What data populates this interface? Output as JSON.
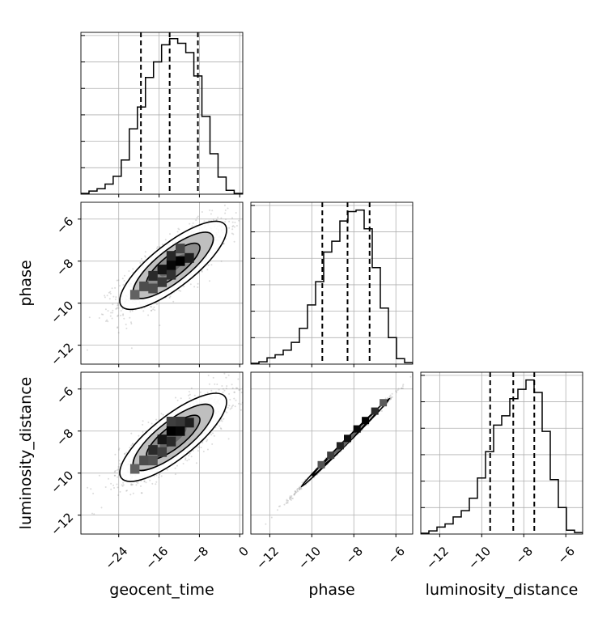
{
  "chart_data": {
    "type": "corner",
    "parameters": [
      "geocent_time",
      "phase",
      "luminosity_distance"
    ],
    "axis_labels": {
      "x": [
        "geocent_time",
        "phase",
        "luminosity_distance"
      ],
      "y_rows": [
        "",
        "phase",
        "luminosity_distance"
      ]
    },
    "ranges": {
      "geocent_time": [
        -31.5,
        0.6
      ],
      "phase": [
        -12.9,
        -5.2
      ],
      "luminosity_distance": [
        -12.9,
        -5.2
      ]
    },
    "ticks": {
      "geocent_time": [
        -24,
        -16,
        -8,
        0
      ],
      "phase": [
        -12,
        -10,
        -8,
        -6
      ],
      "luminosity_distance": [
        -12,
        -10,
        -8,
        -6
      ]
    },
    "tick_labels": {
      "geocent_time": [
        "−24",
        "−16",
        "−8",
        "0"
      ],
      "phase": [
        "−12",
        "−10",
        "−8",
        "−6"
      ],
      "luminosity_distance": [
        "−12",
        "−10",
        "−8",
        "−6"
      ]
    },
    "quantile_lines": {
      "geocent_time": [
        -19.6,
        -13.9,
        -8.3
      ],
      "phase": [
        -9.5,
        -8.3,
        -7.25
      ],
      "luminosity_distance": [
        -9.6,
        -8.5,
        -7.5
      ]
    },
    "histograms": {
      "geocent_time": {
        "bins": [
          -31.5,
          -29.9,
          -28.3,
          -26.7,
          -25.1,
          -23.5,
          -21.9,
          -20.3,
          -18.7,
          -17.1,
          -15.5,
          -13.9,
          -12.3,
          -10.7,
          -9.1,
          -7.5,
          -5.9,
          -4.3,
          -2.7,
          -1.1,
          0.5
        ],
        "counts": [
          0.5,
          2,
          3.5,
          6.5,
          11.5,
          22,
          42,
          56,
          75,
          85,
          96,
          100,
          97,
          91,
          76,
          50,
          26,
          11,
          2.5,
          0.5
        ]
      },
      "phase": {
        "bins": [
          -12.9,
          -12.515,
          -12.13,
          -11.745,
          -11.36,
          -10.975,
          -10.59,
          -10.205,
          -9.82,
          -9.435,
          -9.05,
          -8.665,
          -8.28,
          -7.895,
          -7.51,
          -7.125,
          -6.74,
          -6.355,
          -5.97,
          -5.585,
          -5.2
        ],
        "counts": [
          0.5,
          1.5,
          4,
          6,
          9,
          14,
          23,
          38,
          53,
          72,
          79,
          92,
          98,
          99,
          87,
          62,
          36,
          17,
          3.5,
          1
        ]
      },
      "luminosity_distance": {
        "bins": [
          -12.9,
          -12.515,
          -12.13,
          -11.745,
          -11.36,
          -10.975,
          -10.59,
          -10.205,
          -9.82,
          -9.435,
          -9.05,
          -8.665,
          -8.28,
          -7.895,
          -7.51,
          -7.125,
          -6.74,
          -6.355,
          -5.97,
          -5.585,
          -5.2
        ],
        "counts": [
          0.5,
          2,
          4.5,
          6.5,
          11,
          15,
          23,
          36,
          53,
          70,
          76,
          87,
          93,
          99,
          91,
          66,
          35,
          17,
          2.5,
          1
        ]
      }
    },
    "hist_ylim": [
      0,
      104
    ],
    "hist_y_gridlines": [
      17,
      34,
      51,
      68,
      85,
      102
    ],
    "joint": [
      {
        "x": "geocent_time",
        "y": "phase",
        "center": [
          -13.2,
          -8.2
        ],
        "sd": [
          5.3,
          1.05
        ],
        "corr": 0.8,
        "hot_cells": [
          [
            -13.6,
            -8.2,
            0.95
          ],
          [
            -11.8,
            -8.0,
            1.0
          ],
          [
            -15.4,
            -8.4,
            0.85
          ],
          [
            -10.0,
            -7.85,
            0.78
          ],
          [
            -17.2,
            -8.7,
            0.7
          ],
          [
            -13.6,
            -7.75,
            0.72
          ],
          [
            -15.4,
            -9.0,
            0.6
          ],
          [
            -19.0,
            -9.2,
            0.45
          ],
          [
            -11.8,
            -7.4,
            0.5
          ],
          [
            -13.6,
            -8.65,
            0.65
          ],
          [
            -17.2,
            -9.3,
            0.45
          ],
          [
            -20.8,
            -9.6,
            0.3
          ]
        ]
      },
      {
        "x": "geocent_time",
        "y": "luminosity_distance",
        "center": [
          -13.2,
          -8.3
        ],
        "sd": [
          5.3,
          1.05
        ],
        "corr": 0.8,
        "hot_cells": [
          [
            -13.6,
            -8.0,
            1.0
          ],
          [
            -11.8,
            -8.0,
            0.95
          ],
          [
            -15.4,
            -8.4,
            0.85
          ],
          [
            -10.0,
            -7.6,
            0.78
          ],
          [
            -17.2,
            -8.9,
            0.7
          ],
          [
            -13.6,
            -8.5,
            0.7
          ],
          [
            -11.8,
            -7.55,
            0.6
          ],
          [
            -15.4,
            -9.0,
            0.55
          ],
          [
            -19.0,
            -9.4,
            0.45
          ],
          [
            -13.6,
            -7.55,
            0.55
          ],
          [
            -17.2,
            -9.4,
            0.4
          ],
          [
            -20.8,
            -9.8,
            0.3
          ]
        ]
      },
      {
        "x": "phase",
        "y": "luminosity_distance",
        "center": [
          -8.4,
          -8.55
        ],
        "sd": [
          1.05,
          1.05
        ],
        "corr": 0.998,
        "hot_cells": [
          [
            -7.45,
            -7.5,
            1.0
          ],
          [
            -7.85,
            -7.9,
            0.95
          ],
          [
            -8.3,
            -8.35,
            0.9
          ],
          [
            -8.65,
            -8.7,
            0.75
          ],
          [
            -9.1,
            -9.15,
            0.55
          ],
          [
            -7.0,
            -7.05,
            0.7
          ],
          [
            -9.55,
            -9.6,
            0.4
          ],
          [
            -6.6,
            -6.65,
            0.35
          ]
        ]
      }
    ],
    "colors": {
      "line": "#000000",
      "grid": "#b0b0b0",
      "scatter": "#808080",
      "contour_fill": "#ffffff"
    }
  }
}
